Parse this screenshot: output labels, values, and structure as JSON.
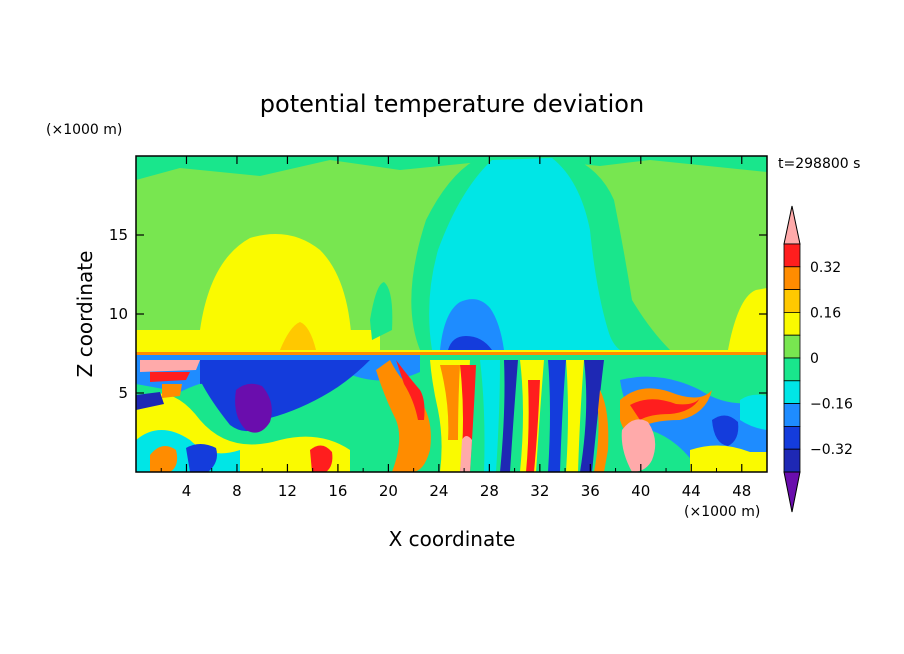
{
  "chart_data": {
    "type": "heatmap",
    "title": "potential temperature deviation",
    "xlabel": "X coordinate",
    "ylabel": "Z coordinate",
    "x_unit": "(×1000 m)",
    "y_unit": "(×1000 m)",
    "time_label": "t=298800 s",
    "xlim": [
      0,
      50
    ],
    "ylim": [
      0,
      20
    ],
    "x_ticks": [
      "4",
      "8",
      "12",
      "16",
      "20",
      "24",
      "28",
      "32",
      "36",
      "40",
      "44",
      "48"
    ],
    "y_ticks": [
      "5",
      "10",
      "15"
    ],
    "colorbar": {
      "ticks": [
        "0.32",
        "0.16",
        "0",
        "−0.16",
        "−0.32"
      ],
      "levels": [
        -0.4,
        -0.32,
        -0.24,
        -0.16,
        -0.08,
        0,
        0.08,
        0.16,
        0.24,
        0.32,
        0.4
      ],
      "colors": [
        "#6a0dad",
        "#1e28b4",
        "#143cdc",
        "#1e8cff",
        "#00e6e6",
        "#19e68c",
        "#78e650",
        "#fafa00",
        "#ffc800",
        "#ff8c00",
        "#ff1e1e",
        "#ffaaaa"
      ],
      "extend": "both"
    },
    "regions": [
      {
        "x": [
          0,
          50
        ],
        "z": [
          7.5,
          20
        ],
        "value": 0.04
      },
      {
        "x": [
          0,
          25
        ],
        "z": [
          8,
          14
        ],
        "value": 0.12
      },
      {
        "x": [
          23,
          40
        ],
        "z": [
          8,
          20
        ],
        "value": -0.1
      },
      {
        "x": [
          24,
          28
        ],
        "z": [
          8,
          11
        ],
        "value": -0.2
      },
      {
        "x": [
          0,
          50
        ],
        "z": [
          7.4,
          7.8
        ],
        "value": 0.2
      },
      {
        "x": [
          0,
          50
        ],
        "z": [
          0,
          7.4
        ],
        "value": 0.0,
        "note": "strongly wavy"
      }
    ]
  }
}
